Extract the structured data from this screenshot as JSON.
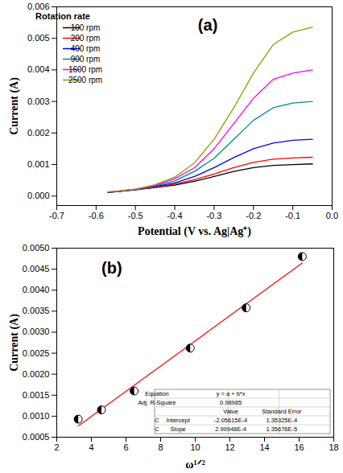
{
  "chart_data": [
    {
      "type": "line",
      "title": "(a)",
      "xlabel": "Potential (V vs. Ag|Ag⁺)",
      "ylabel": "Current (A)",
      "legend": "top-left",
      "legend_title": "Rotation rate",
      "grid": false,
      "x": [
        -0.57,
        -0.55,
        -0.5,
        -0.45,
        -0.4,
        -0.35,
        -0.3,
        -0.25,
        -0.2,
        -0.15,
        -0.1,
        -0.05
      ],
      "series": [
        {
          "name": "100 rpm",
          "color": "#000000",
          "values": [
            0.00012,
            0.00014,
            0.0002,
            0.00027,
            0.00035,
            0.00047,
            0.00062,
            0.00078,
            0.0009,
            0.00097,
            0.001,
            0.00102
          ]
        },
        {
          "name": "200 rpm",
          "color": "#ff0000",
          "values": [
            0.00012,
            0.00014,
            0.0002,
            0.00028,
            0.00038,
            0.00052,
            0.0007,
            0.0009,
            0.00107,
            0.00117,
            0.00121,
            0.00123
          ]
        },
        {
          "name": "400 rpm",
          "color": "#0000ff",
          "values": [
            0.00012,
            0.00014,
            0.0002,
            0.0003,
            0.00042,
            0.00062,
            0.0009,
            0.00122,
            0.0015,
            0.00168,
            0.00177,
            0.0018
          ]
        },
        {
          "name": "900 rpm",
          "color": "#008b8b",
          "values": [
            0.00013,
            0.00015,
            0.00021,
            0.00032,
            0.00048,
            0.00078,
            0.0012,
            0.0018,
            0.0024,
            0.0028,
            0.00295,
            0.003
          ]
        },
        {
          "name": "1600 rpm",
          "color": "#ff00ff",
          "values": [
            0.00013,
            0.00015,
            0.00022,
            0.00034,
            0.00055,
            0.0009,
            0.0015,
            0.0023,
            0.0031,
            0.0037,
            0.0039,
            0.004
          ]
        },
        {
          "name": "2500 rpm",
          "color": "#999900",
          "values": [
            0.00013,
            0.00015,
            0.00022,
            0.00036,
            0.0006,
            0.00105,
            0.0018,
            0.0028,
            0.0039,
            0.0048,
            0.0052,
            0.00535
          ]
        }
      ],
      "xlim": [
        -0.7,
        0.0
      ],
      "xticks": [
        {
          "value": -0.7,
          "label": "-0.7"
        },
        {
          "value": -0.6,
          "label": "-0.6"
        },
        {
          "value": -0.5,
          "label": "-0.5"
        },
        {
          "value": -0.4,
          "label": "-0.4"
        },
        {
          "value": -0.3,
          "label": "-0.3"
        },
        {
          "value": -0.2,
          "label": "-0.2"
        },
        {
          "value": -0.1,
          "label": "-0.1"
        },
        {
          "value": 0.0,
          "label": "0.0"
        }
      ],
      "ylim": [
        -0.0003,
        0.006
      ],
      "yticks": [
        {
          "value": 0,
          "label": "0.000"
        },
        0.001,
        0.002,
        0.003,
        0.004,
        0.005,
        0.006
      ]
    },
    {
      "type": "scatter",
      "title": "(b)",
      "xlabel": "ω¹ᐟ²",
      "ylabel": "Current (A)",
      "grid": false,
      "marker": "circle",
      "color": "#000000",
      "x": [
        3.24,
        4.58,
        6.47,
        9.71,
        12.94,
        16.18
      ],
      "values": [
        0.00093,
        0.00115,
        0.0016,
        0.00262,
        0.00358,
        0.0048
      ],
      "fit": {
        "color": "#ff0000",
        "x": [
          3.24,
          16.18
        ],
        "values": [
          0.000766,
          0.004647
        ]
      },
      "fit_table": {
        "equation_label": "Equation",
        "equation": "y = a + b*x",
        "r2_label": "Adj. R-Square",
        "r2": "0.98985",
        "header": [
          "Value",
          "Standard Error"
        ],
        "rows": [
          [
            "C",
            "Intercept",
            "-2.05615E-4",
            "1.35325E-4"
          ],
          [
            "C",
            "Slope",
            "2.99948E-4",
            "1.35676E-5"
          ]
        ]
      },
      "xlim": [
        2,
        18
      ],
      "xticks": [
        2,
        4,
        6,
        8,
        10,
        12,
        14,
        16,
        18
      ],
      "ylim": [
        0.0005,
        0.005
      ],
      "yticks": [
        0.0005,
        {
          "value": 0.001,
          "label": "0.0010"
        },
        {
          "value": 0.0015,
          "label": "0.0015"
        },
        {
          "value": 0.002,
          "label": "0.0020"
        },
        0.0025,
        {
          "value": 0.003,
          "label": "0.0030"
        },
        0.0035,
        {
          "value": 0.004,
          "label": "0.0040"
        },
        0.0045,
        {
          "value": 0.005,
          "label": "0.0050"
        }
      ]
    }
  ]
}
